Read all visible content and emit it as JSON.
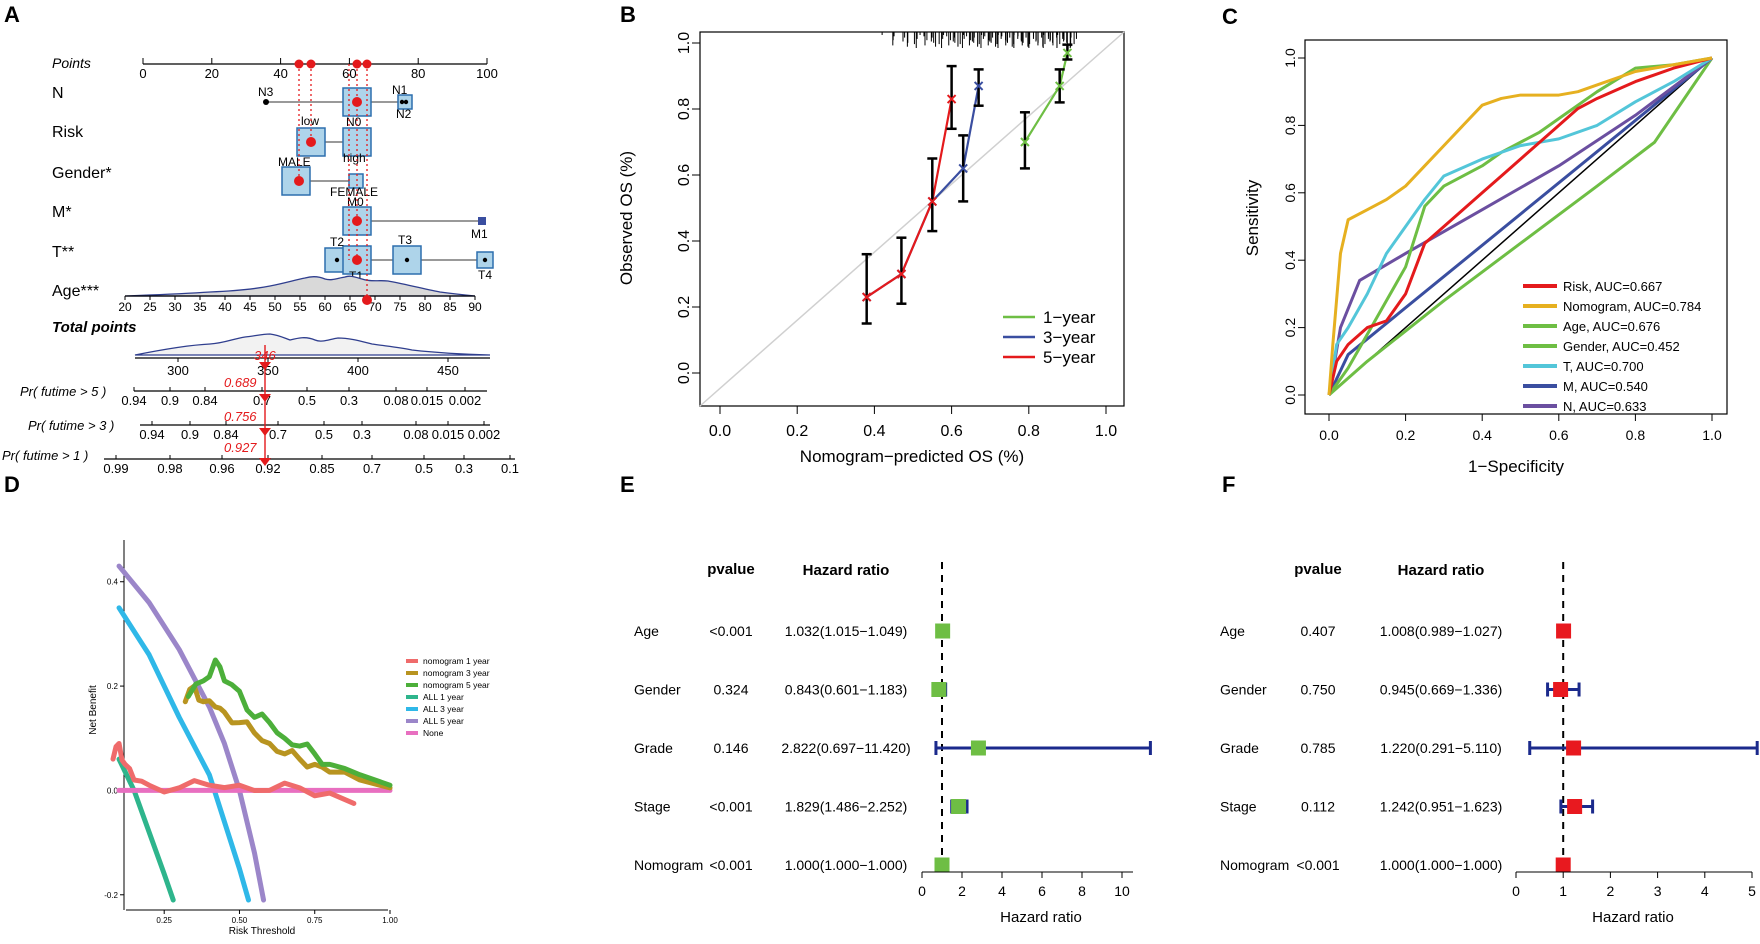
{
  "colors": {
    "red": "#e41a1c",
    "green": "#6ebe44",
    "blue": "#3a4ea0",
    "gold": "#e6b020",
    "cyan": "#53c6d9",
    "purple": "#6b4fa0",
    "navy": "#1b2a8c",
    "box_fill": "#aed4ea",
    "box_stroke": "#2d6fae",
    "dca_n1": "#ef6b6b",
    "dca_n3": "#b89420",
    "dca_n5": "#4caf3a",
    "dca_a1": "#2eb58c",
    "dca_a3": "#2fb8e8",
    "dca_a5": "#9b86c9",
    "dca_none": "#e86fc0",
    "sq_green": "#6ebe44",
    "sq_red": "#e8191f"
  },
  "panels": {
    "A": "A",
    "B": "B",
    "C": "C",
    "D": "D",
    "E": "E",
    "F": "F"
  },
  "nomogram": {
    "rows": [
      {
        "label": "Points",
        "italic": true
      },
      {
        "label": "N"
      },
      {
        "label": "Risk"
      },
      {
        "label": "Gender*"
      },
      {
        "label": "M*"
      },
      {
        "label": "T**"
      },
      {
        "label": "Age***"
      },
      {
        "label": "Total points",
        "bold": true,
        "italic": true
      },
      {
        "label": "Pr( futime > 5 )",
        "italic": true
      },
      {
        "label": "Pr( futime > 3 )",
        "italic": true
      },
      {
        "label": "Pr( futime > 1 )",
        "italic": true
      }
    ],
    "points_ticks": [
      "0",
      "20",
      "40",
      "60",
      "80",
      "100"
    ],
    "n_levels": [
      "N3",
      "N1",
      "N0",
      "N2"
    ],
    "risk_levels": [
      "low",
      "high"
    ],
    "gender_levels": [
      "MALE",
      "FEMALE"
    ],
    "m_levels": [
      "M0",
      "M1"
    ],
    "t_levels": [
      "T2",
      "T1",
      "T3",
      "T4"
    ],
    "age_ticks": [
      "20",
      "25",
      "30",
      "35",
      "40",
      "45",
      "50",
      "55",
      "60",
      "65",
      "70",
      "75",
      "80",
      "85",
      "90"
    ],
    "total_ticks": [
      "300",
      "350",
      "400",
      "450"
    ],
    "total_value": "346",
    "pr5_ticks": [
      "0.94",
      "0.9",
      "0.84",
      "0.7",
      "0.5",
      "0.3",
      "0.08",
      "0.015",
      "0.002"
    ],
    "pr3_ticks": [
      "0.94",
      "0.9",
      "0.84",
      "0.7",
      "0.5",
      "0.3",
      "0.08",
      "0.015",
      "0.002"
    ],
    "pr1_ticks": [
      "0.99",
      "0.98",
      "0.96",
      "0.92",
      "0.85",
      "0.7",
      "0.5",
      "0.3",
      "0.1"
    ],
    "pr5_value": "0.689",
    "pr3_value": "0.756",
    "pr1_value": "0.927"
  },
  "chart_data": [
    {
      "panel": "B",
      "type": "line",
      "xlabel": "Nomogram−predicted OS (%)",
      "ylabel": "Observed OS (%)",
      "xlim": [
        0,
        1
      ],
      "ylim": [
        0,
        1
      ],
      "xticks": [
        "0.0",
        "0.2",
        "0.4",
        "0.6",
        "0.8",
        "1.0"
      ],
      "yticks": [
        "0.0",
        "0.2",
        "0.4",
        "0.6",
        "0.8",
        "1.0"
      ],
      "legend": [
        "1−year",
        "3−year",
        "5−year"
      ],
      "series": [
        {
          "name": "1−year",
          "points": [
            {
              "x": 0.79,
              "y": 0.7,
              "lo": 0.62,
              "hi": 0.79
            },
            {
              "x": 0.88,
              "y": 0.87,
              "lo": 0.82,
              "hi": 0.92
            },
            {
              "x": 0.9,
              "y": 0.97,
              "lo": 0.95,
              "hi": 0.995
            }
          ]
        },
        {
          "name": "3−year",
          "points": [
            {
              "x": 0.38,
              "y": 0.23,
              "lo": 0.15,
              "hi": 0.36
            },
            {
              "x": 0.47,
              "y": 0.3,
              "lo": 0.21,
              "hi": 0.41
            },
            {
              "x": 0.55,
              "y": 0.52,
              "lo": 0.43,
              "hi": 0.65
            },
            {
              "x": 0.63,
              "y": 0.62,
              "lo": 0.52,
              "hi": 0.72
            },
            {
              "x": 0.67,
              "y": 0.87,
              "lo": 0.81,
              "hi": 0.92
            }
          ]
        },
        {
          "name": "5−year",
          "points": [
            {
              "x": 0.38,
              "y": 0.23
            },
            {
              "x": 0.47,
              "y": 0.3
            },
            {
              "x": 0.55,
              "y": 0.52
            },
            {
              "x": 0.6,
              "y": 0.83,
              "lo": 0.74,
              "hi": 0.93
            }
          ]
        }
      ]
    },
    {
      "panel": "C",
      "type": "line",
      "xlabel": "1−Specificity",
      "ylabel": "Sensitivity",
      "xlim": [
        0,
        1
      ],
      "ylim": [
        0,
        1
      ],
      "xticks": [
        "0.0",
        "0.2",
        "0.4",
        "0.6",
        "0.8",
        "1.0"
      ],
      "yticks": [
        "0.0",
        "0.2",
        "0.4",
        "0.6",
        "0.8",
        "1.0"
      ],
      "series": [
        {
          "name": "Risk, AUC=0.667",
          "points": [
            [
              0,
              0
            ],
            [
              0.02,
              0.1
            ],
            [
              0.05,
              0.15
            ],
            [
              0.08,
              0.18
            ],
            [
              0.1,
              0.2
            ],
            [
              0.15,
              0.22
            ],
            [
              0.2,
              0.3
            ],
            [
              0.25,
              0.45
            ],
            [
              0.3,
              0.5
            ],
            [
              0.35,
              0.55
            ],
            [
              0.4,
              0.6
            ],
            [
              0.45,
              0.65
            ],
            [
              0.5,
              0.7
            ],
            [
              0.55,
              0.75
            ],
            [
              0.6,
              0.8
            ],
            [
              0.65,
              0.85
            ],
            [
              0.7,
              0.88
            ],
            [
              0.8,
              0.93
            ],
            [
              0.9,
              0.97
            ],
            [
              1,
              1
            ]
          ]
        },
        {
          "name": "Nomogram, AUC=0.784",
          "points": [
            [
              0,
              0
            ],
            [
              0.01,
              0.15
            ],
            [
              0.03,
              0.42
            ],
            [
              0.05,
              0.52
            ],
            [
              0.1,
              0.55
            ],
            [
              0.15,
              0.58
            ],
            [
              0.2,
              0.62
            ],
            [
              0.25,
              0.68
            ],
            [
              0.3,
              0.74
            ],
            [
              0.35,
              0.8
            ],
            [
              0.4,
              0.86
            ],
            [
              0.45,
              0.88
            ],
            [
              0.5,
              0.89
            ],
            [
              0.6,
              0.89
            ],
            [
              0.65,
              0.9
            ],
            [
              0.7,
              0.92
            ],
            [
              0.8,
              0.96
            ],
            [
              0.9,
              0.98
            ],
            [
              1,
              1
            ]
          ]
        },
        {
          "name": "Age, AUC=0.676",
          "points": [
            [
              0,
              0
            ],
            [
              0.05,
              0.08
            ],
            [
              0.1,
              0.18
            ],
            [
              0.15,
              0.28
            ],
            [
              0.2,
              0.38
            ],
            [
              0.25,
              0.56
            ],
            [
              0.3,
              0.62
            ],
            [
              0.35,
              0.65
            ],
            [
              0.4,
              0.68
            ],
            [
              0.45,
              0.72
            ],
            [
              0.5,
              0.75
            ],
            [
              0.55,
              0.78
            ],
            [
              0.6,
              0.82
            ],
            [
              0.7,
              0.9
            ],
            [
              0.8,
              0.97
            ],
            [
              0.9,
              0.98
            ],
            [
              1,
              1
            ]
          ]
        },
        {
          "name": "Gender, AUC=0.452",
          "points": [
            [
              0,
              0
            ],
            [
              0.1,
              0.1
            ],
            [
              0.3,
              0.28
            ],
            [
              0.5,
              0.45
            ],
            [
              0.7,
              0.62
            ],
            [
              0.85,
              0.75
            ],
            [
              1,
              1
            ]
          ]
        },
        {
          "name": "T, AUC=0.700",
          "points": [
            [
              0,
              0
            ],
            [
              0.02,
              0.15
            ],
            [
              0.05,
              0.2
            ],
            [
              0.1,
              0.3
            ],
            [
              0.15,
              0.42
            ],
            [
              0.2,
              0.5
            ],
            [
              0.25,
              0.58
            ],
            [
              0.3,
              0.65
            ],
            [
              0.4,
              0.7
            ],
            [
              0.5,
              0.74
            ],
            [
              0.6,
              0.76
            ],
            [
              0.7,
              0.8
            ],
            [
              0.8,
              0.87
            ],
            [
              0.9,
              0.93
            ],
            [
              1,
              1
            ]
          ]
        },
        {
          "name": "M, AUC=0.540",
          "points": [
            [
              0,
              0
            ],
            [
              0.05,
              0.12
            ],
            [
              1,
              1
            ]
          ]
        },
        {
          "name": "N, AUC=0.633",
          "points": [
            [
              0,
              0
            ],
            [
              0.03,
              0.2
            ],
            [
              0.08,
              0.34
            ],
            [
              0.2,
              0.42
            ],
            [
              0.4,
              0.55
            ],
            [
              0.6,
              0.68
            ],
            [
              0.8,
              0.83
            ],
            [
              1,
              1
            ]
          ]
        }
      ]
    },
    {
      "panel": "D",
      "type": "line",
      "xlabel": "Risk Threshold",
      "ylabel": "Net Benefit",
      "xlim": [
        0.07,
        1.0
      ],
      "ylim": [
        -0.21,
        0.48
      ],
      "xticks": [
        "0.25",
        "0.50",
        "0.75",
        "1.00"
      ],
      "yticks": [
        "-0.2",
        "0.0",
        "0.2",
        "0.4"
      ],
      "series": [
        {
          "name": "nomogram 1 year",
          "points": [
            [
              0.08,
              0.06
            ],
            [
              0.1,
              0.09
            ],
            [
              0.12,
              0.05
            ],
            [
              0.15,
              0.02
            ],
            [
              0.2,
              0.01
            ],
            [
              0.3,
              0.005
            ],
            [
              0.4,
              0.01
            ],
            [
              0.5,
              0.01
            ],
            [
              0.6,
              0.0
            ],
            [
              0.7,
              0.005
            ],
            [
              0.8,
              -0.005
            ],
            [
              0.88,
              -0.025
            ]
          ]
        },
        {
          "name": "nomogram 3 year",
          "points": [
            [
              0.32,
              0.17
            ],
            [
              0.35,
              0.2
            ],
            [
              0.38,
              0.17
            ],
            [
              0.42,
              0.16
            ],
            [
              0.45,
              0.15
            ],
            [
              0.5,
              0.13
            ],
            [
              0.55,
              0.11
            ],
            [
              0.6,
              0.09
            ],
            [
              0.65,
              0.07
            ],
            [
              0.7,
              0.06
            ],
            [
              0.75,
              0.05
            ],
            [
              0.8,
              0.035
            ],
            [
              0.9,
              0.02
            ],
            [
              1.0,
              0.005
            ]
          ]
        },
        {
          "name": "nomogram 5 year",
          "points": [
            [
              0.33,
              0.18
            ],
            [
              0.38,
              0.21
            ],
            [
              0.42,
              0.25
            ],
            [
              0.45,
              0.21
            ],
            [
              0.5,
              0.19
            ],
            [
              0.55,
              0.14
            ],
            [
              0.6,
              0.13
            ],
            [
              0.65,
              0.1
            ],
            [
              0.7,
              0.085
            ],
            [
              0.75,
              0.07
            ],
            [
              0.8,
              0.05
            ],
            [
              0.9,
              0.03
            ],
            [
              1.0,
              0.01
            ]
          ]
        },
        {
          "name": "ALL 1 year",
          "points": [
            [
              0.1,
              0.06
            ],
            [
              0.15,
              0.0
            ],
            [
              0.2,
              -0.08
            ],
            [
              0.25,
              -0.16
            ],
            [
              0.28,
              -0.21
            ]
          ]
        },
        {
          "name": "ALL 3 year",
          "points": [
            [
              0.1,
              0.35
            ],
            [
              0.2,
              0.26
            ],
            [
              0.3,
              0.14
            ],
            [
              0.4,
              0.03
            ],
            [
              0.45,
              -0.06
            ],
            [
              0.5,
              -0.15
            ],
            [
              0.53,
              -0.21
            ]
          ]
        },
        {
          "name": "ALL 5 year",
          "points": [
            [
              0.1,
              0.43
            ],
            [
              0.2,
              0.36
            ],
            [
              0.3,
              0.27
            ],
            [
              0.4,
              0.16
            ],
            [
              0.45,
              0.09
            ],
            [
              0.5,
              0.0
            ],
            [
              0.55,
              -0.12
            ],
            [
              0.58,
              -0.21
            ]
          ]
        },
        {
          "name": "None",
          "points": [
            [
              0.1,
              0.0
            ],
            [
              1.0,
              0.0
            ]
          ]
        }
      ]
    },
    {
      "panel": "E",
      "type": "forest",
      "col_pvalue": "pvalue",
      "col_hr": "Hazard ratio",
      "xlabel": "Hazard ratio",
      "xticks": [
        "0",
        "2",
        "4",
        "6",
        "8",
        "10"
      ],
      "xlim": [
        0,
        11.5
      ],
      "rows": [
        {
          "label": "Age",
          "p": "<0.001",
          "hr_text": "1.032(1.015−1.049)",
          "hr": 1.032,
          "lo": 1.015,
          "hi": 1.049
        },
        {
          "label": "Gender",
          "p": "0.324",
          "hr_text": "0.843(0.601−1.183)",
          "hr": 0.843,
          "lo": 0.601,
          "hi": 1.183
        },
        {
          "label": "Grade",
          "p": "0.146",
          "hr_text": "2.822(0.697−11.420)",
          "hr": 2.822,
          "lo": 0.697,
          "hi": 11.42
        },
        {
          "label": "Stage",
          "p": "<0.001",
          "hr_text": "1.829(1.486−2.252)",
          "hr": 1.829,
          "lo": 1.486,
          "hi": 2.252
        },
        {
          "label": "Nomogram",
          "p": "<0.001",
          "hr_text": "1.000(1.000−1.000)",
          "hr": 1.0,
          "lo": 1.0,
          "hi": 1.0
        }
      ]
    },
    {
      "panel": "F",
      "type": "forest",
      "col_pvalue": "pvalue",
      "col_hr": "Hazard ratio",
      "xlabel": "Hazard ratio",
      "xticks": [
        "0",
        "1",
        "2",
        "3",
        "4",
        "5"
      ],
      "xlim": [
        0,
        5
      ],
      "rows": [
        {
          "label": "Age",
          "p": "0.407",
          "hr_text": "1.008(0.989−1.027)",
          "hr": 1.008,
          "lo": 0.989,
          "hi": 1.027
        },
        {
          "label": "Gender",
          "p": "0.750",
          "hr_text": "0.945(0.669−1.336)",
          "hr": 0.945,
          "lo": 0.669,
          "hi": 1.336
        },
        {
          "label": "Grade",
          "p": "0.785",
          "hr_text": "1.220(0.291−5.110)",
          "hr": 1.22,
          "lo": 0.291,
          "hi": 5.11
        },
        {
          "label": "Stage",
          "p": "0.112",
          "hr_text": "1.242(0.951−1.623)",
          "hr": 1.242,
          "lo": 0.951,
          "hi": 1.623
        },
        {
          "label": "Nomogram",
          "p": "<0.001",
          "hr_text": "1.000(1.000−1.000)",
          "hr": 1.0,
          "lo": 1.0,
          "hi": 1.0
        }
      ]
    }
  ]
}
